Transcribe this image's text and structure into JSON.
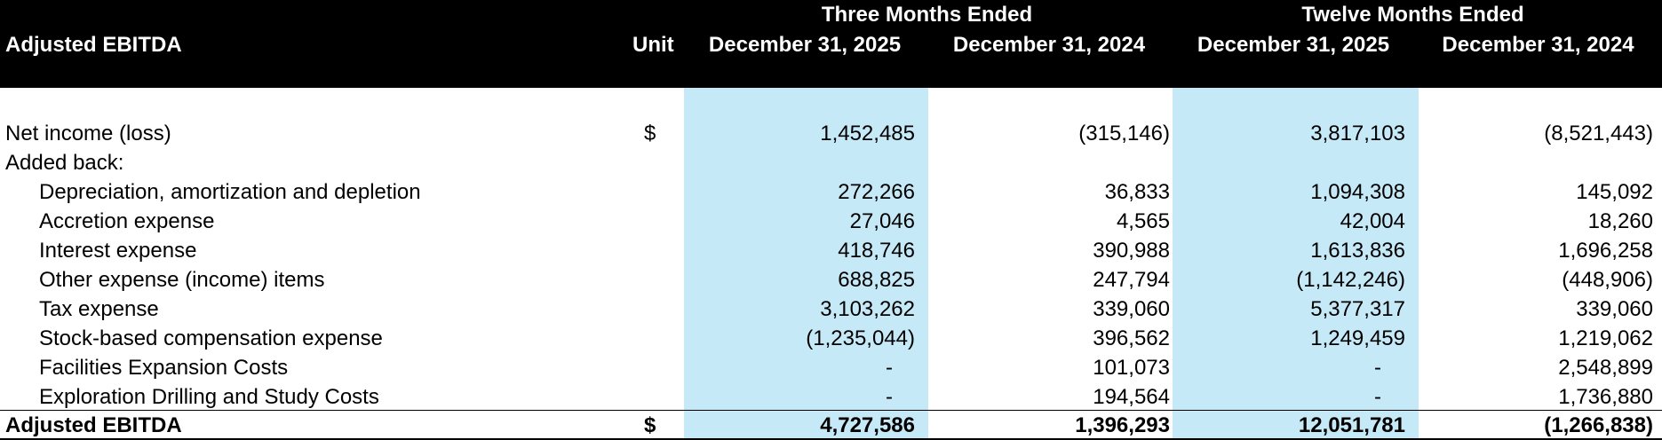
{
  "header": {
    "title": "Adjusted EBITDA",
    "unit": "Unit",
    "group1": "Three Months Ended",
    "group2": "Twelve Months Ended",
    "col1": "December 31, 2025",
    "col2": "December 31, 2024",
    "col3": "December 31, 2025",
    "col4": "December 31, 2024"
  },
  "colors": {
    "header_bg": "#000000",
    "shaded_column": "#c6e9f8"
  },
  "rows": [
    {
      "label": "Net income (loss)",
      "unit": "$",
      "v1": "1,452,485",
      "v2": "(315,146)",
      "v3": "3,817,103",
      "v4": "(8,521,443)"
    },
    {
      "label": "Added back:",
      "unit": "",
      "v1": "",
      "v2": "",
      "v3": "",
      "v4": ""
    },
    {
      "label": "Depreciation, amortization and depletion",
      "unit": "",
      "v1": "272,266",
      "v2": "36,833",
      "v3": "1,094,308",
      "v4": "145,092"
    },
    {
      "label": "Accretion expense",
      "unit": "",
      "v1": "27,046",
      "v2": "4,565",
      "v3": "42,004",
      "v4": "18,260"
    },
    {
      "label": "Interest expense",
      "unit": "",
      "v1": "418,746",
      "v2": "390,988",
      "v3": "1,613,836",
      "v4": "1,696,258"
    },
    {
      "label": "Other expense (income) items",
      "unit": "",
      "v1": "688,825",
      "v2": "247,794",
      "v3": "(1,142,246)",
      "v4": "(448,906)"
    },
    {
      "label": "Tax expense",
      "unit": "",
      "v1": "3,103,262",
      "v2": "339,060",
      "v3": "5,377,317",
      "v4": "339,060"
    },
    {
      "label": "Stock-based compensation expense",
      "unit": "",
      "v1": "(1,235,044)",
      "v2": "396,562",
      "v3": "1,249,459",
      "v4": "1,219,062"
    },
    {
      "label": "Facilities Expansion Costs",
      "unit": "",
      "v1": "-",
      "v2": "101,073",
      "v3": "-",
      "v4": "2,548,899"
    },
    {
      "label": "Exploration Drilling and Study Costs",
      "unit": "",
      "v1": "-",
      "v2": "194,564",
      "v3": "-",
      "v4": "1,736,880"
    }
  ],
  "total": {
    "label": "Adjusted EBITDA",
    "unit": "$",
    "v1": "4,727,586",
    "v2": "1,396,293",
    "v3": "12,051,781",
    "v4": "(1,266,838)"
  }
}
